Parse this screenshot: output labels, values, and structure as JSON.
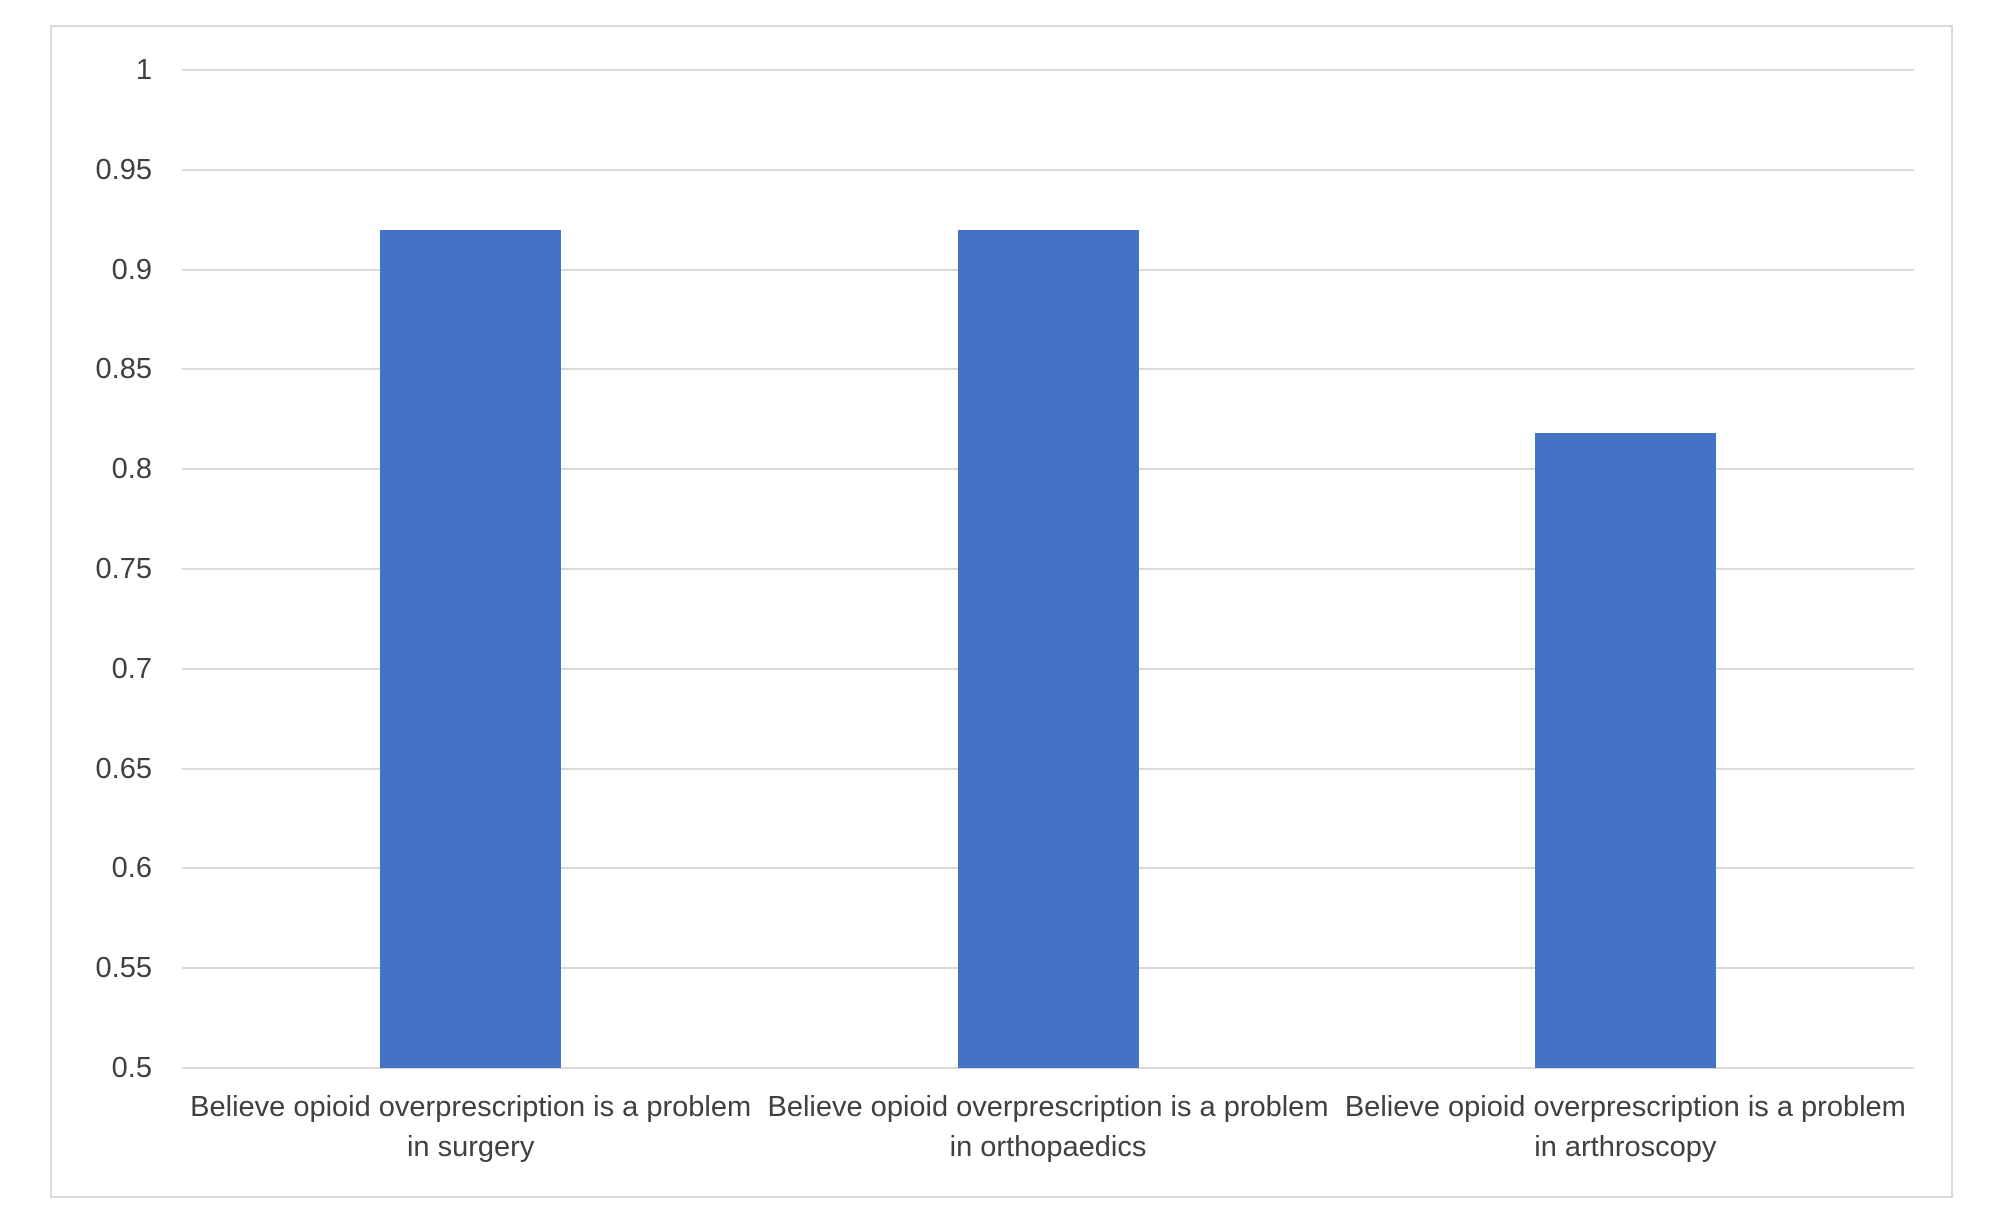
{
  "page": {
    "background_color": "#ffffff",
    "frame_border_color": "#d9d9d9",
    "text_color": "#404040"
  },
  "chart_data": {
    "type": "bar",
    "title": "",
    "xlabel": "",
    "ylabel": "",
    "categories": [
      "Believe opioid overprescription is a problem in surgery",
      "Believe opioid overprescription is a problem in orthopaedics",
      "Believe opioid overprescription is a problem in arthroscopy"
    ],
    "values": [
      0.92,
      0.92,
      0.818
    ],
    "ylim": [
      0.5,
      1.0
    ],
    "yticks": [
      {
        "value": 1.0,
        "label": "1"
      },
      {
        "value": 0.95,
        "label": "0.95"
      },
      {
        "value": 0.9,
        "label": "0.9"
      },
      {
        "value": 0.85,
        "label": "0.85"
      },
      {
        "value": 0.8,
        "label": "0.8"
      },
      {
        "value": 0.75,
        "label": "0.75"
      },
      {
        "value": 0.7,
        "label": "0.7"
      },
      {
        "value": 0.65,
        "label": "0.65"
      },
      {
        "value": 0.6,
        "label": "0.6"
      },
      {
        "value": 0.55,
        "label": "0.55"
      },
      {
        "value": 0.5,
        "label": "0.5"
      }
    ],
    "grid": "horizontal",
    "legend": "none",
    "bar_color": "#4472c4",
    "gridline_color": "#d9d9d9"
  }
}
